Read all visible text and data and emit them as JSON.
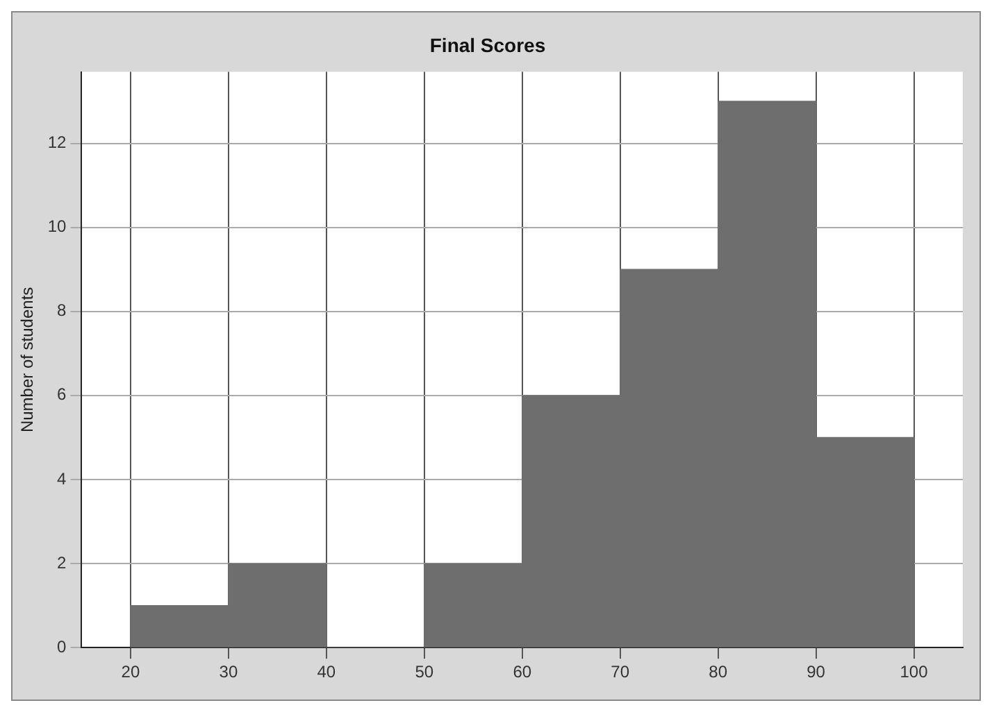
{
  "chart_data": {
    "type": "histogram",
    "title": "Final Scores",
    "ylabel": "Number of students",
    "bins": [
      20,
      30,
      40,
      50,
      60,
      70,
      80,
      90,
      100
    ],
    "values": [
      1,
      2,
      0,
      2,
      6,
      9,
      13,
      5
    ],
    "color": "#6e6e6e",
    "xlim": [
      15,
      105
    ],
    "xticks": [
      20,
      30,
      40,
      50,
      60,
      70,
      80,
      90,
      100
    ],
    "ylim": [
      0,
      13.7
    ],
    "yticks": [
      0,
      2,
      4,
      6,
      8,
      10,
      12
    ],
    "grid": true,
    "legend": false
  }
}
